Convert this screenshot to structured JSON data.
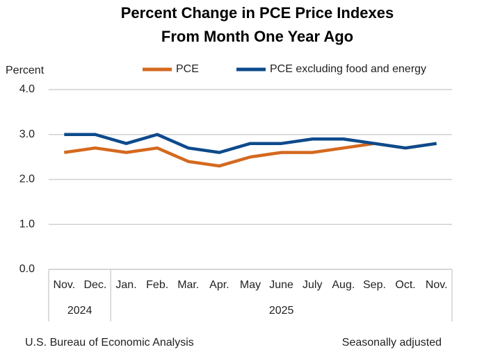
{
  "chart_data": {
    "type": "line",
    "title": [
      "Percent Change in PCE Price Indexes",
      "From Month One Year Ago"
    ],
    "y_label": "Percent",
    "categories": [
      "Nov.",
      "Dec.",
      "Jan.",
      "Feb.",
      "Mar.",
      "Apr.",
      "May",
      "June",
      "July",
      "Aug.",
      "Sep.",
      "Oct.",
      "Nov."
    ],
    "years": [
      "2024",
      "2024",
      "2025",
      "2025",
      "2025",
      "2025",
      "2025",
      "2025",
      "2025",
      "2025",
      "2025",
      "2025",
      "2025"
    ],
    "series": [
      {
        "name": "PCE",
        "color": "#d4691f",
        "values": [
          2.6,
          2.7,
          2.6,
          2.7,
          2.4,
          2.3,
          2.5,
          2.6,
          2.6,
          2.7,
          2.8,
          2.7,
          2.8
        ]
      },
      {
        "name": "PCE excluding food and energy",
        "color": "#0d4a8c",
        "values": [
          3.0,
          3.0,
          2.8,
          3.0,
          2.7,
          2.6,
          2.8,
          2.8,
          2.9,
          2.9,
          2.8,
          2.7,
          2.8
        ]
      }
    ],
    "ylim": [
      0,
      4
    ],
    "yticks": [
      {
        "value": 0,
        "label": "0.0"
      },
      {
        "value": 1,
        "label": "1.0"
      },
      {
        "value": 2,
        "label": "2.0"
      },
      {
        "value": 3,
        "label": "3.0"
      },
      {
        "value": 4,
        "label": "4.0"
      }
    ],
    "grid": true,
    "legend": "top",
    "source": "U.S. Bureau of Economic Analysis",
    "note": "Seasonally adjusted"
  }
}
